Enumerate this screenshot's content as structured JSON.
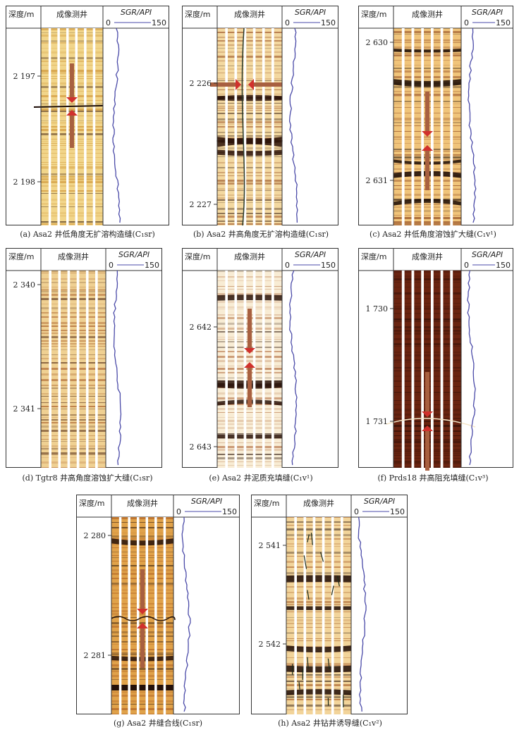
{
  "headers": {
    "depth": "深度/m",
    "image": "成像测井",
    "gr_label": "SGR/API",
    "gr_min": "0",
    "gr_max": "150"
  },
  "panels": [
    {
      "id": "a",
      "depths": [
        "2 197",
        "2 198"
      ],
      "caption": "(a) Asa2 井低角度无扩溶构造缝(C₁sr)",
      "style": "light",
      "arrows": "horizontal-pair-v"
    },
    {
      "id": "b",
      "depths": [
        "2 226",
        "2 227"
      ],
      "caption": "(b) Asa2 井高角度无扩溶构造缝(C₁sr)",
      "style": "banded",
      "arrows": "horizontal-pair-h"
    },
    {
      "id": "c",
      "depths": [
        "2 630",
        "2 631"
      ],
      "caption": "(c) Asa2 井低角度溶蚀扩大缝(C₁v¹)",
      "style": "dark-wavy",
      "arrows": "vertical-pair"
    },
    {
      "id": "d",
      "depths": [
        "2 340",
        "2 341"
      ],
      "caption": "(d) Tgtr8 井高角度溶蚀扩大缝(C₁sr)",
      "style": "stripes",
      "arrows": "none"
    },
    {
      "id": "e",
      "depths": [
        "2 642",
        "2 643"
      ],
      "caption": "(e) Asa2 井泥质充填缝(C₁v¹)",
      "style": "pale-banded",
      "arrows": "vertical-pair"
    },
    {
      "id": "f",
      "depths": [
        "1 730",
        "1 731"
      ],
      "caption": "(f) Prds18 井高阻充填缝(C₁v³)",
      "style": "dark",
      "arrows": "vertical-pair"
    },
    {
      "id": "g",
      "depths": [
        "2 280",
        "2 281"
      ],
      "caption": "(g) Asa2 井缝合线(C₁sr)",
      "style": "orange",
      "arrows": "vertical-pair"
    },
    {
      "id": "h",
      "depths": [
        "2 541",
        "2 542"
      ],
      "caption": "(h) Asa2 井钻井诱导缝(C₁v²)",
      "style": "cracks",
      "arrows": "none"
    }
  ],
  "colors": {
    "gr_curve": "#4a4aa8",
    "arrow": "#d0312d",
    "border": "#333333"
  }
}
